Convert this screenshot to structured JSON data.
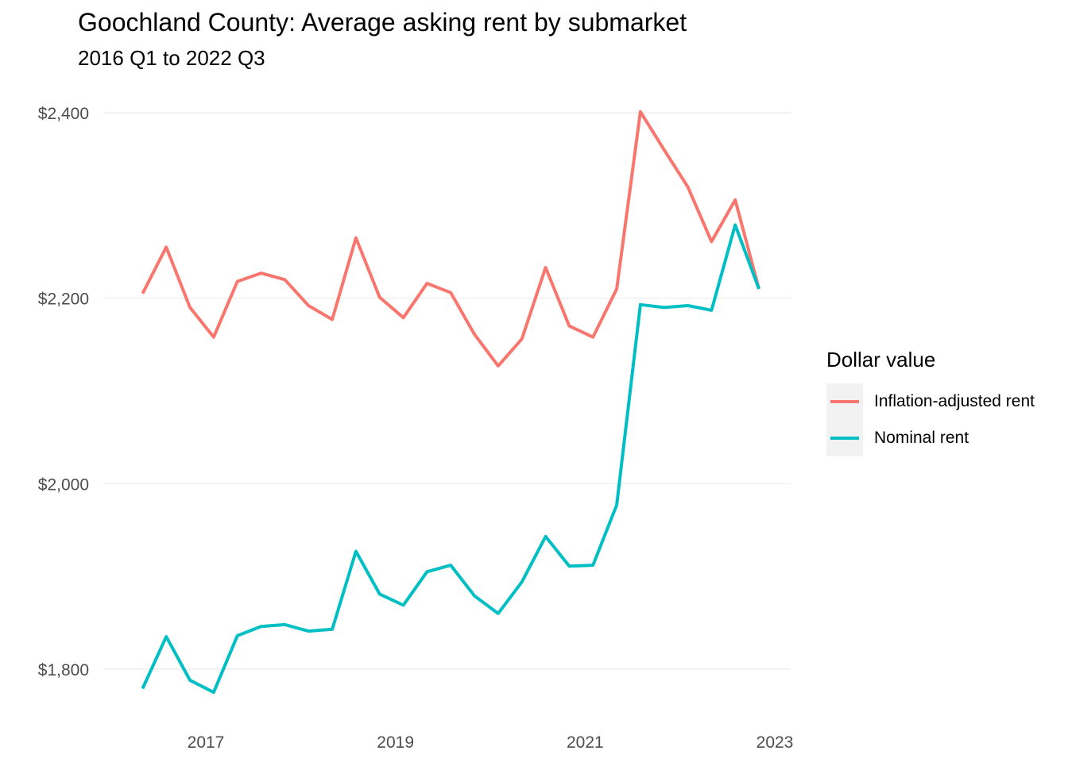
{
  "chart_data": {
    "type": "line",
    "title": "Goochland County: Average asking rent by submarket",
    "subtitle": "2016 Q1 to 2022 Q3",
    "xlabel": "",
    "ylabel": "",
    "x_ticks": [
      "2017",
      "2019",
      "2021",
      "2023"
    ],
    "y_ticks": [
      "$1,800",
      "$2,000",
      "$2,200",
      "$2,400"
    ],
    "ylim": [
      1760,
      2420
    ],
    "grid": true,
    "legend_title": "Dollar value",
    "legend_position": "right",
    "x": [
      "2016 Q1",
      "2016 Q2",
      "2016 Q3",
      "2016 Q4",
      "2017 Q1",
      "2017 Q2",
      "2017 Q3",
      "2017 Q4",
      "2018 Q1",
      "2018 Q2",
      "2018 Q3",
      "2018 Q4",
      "2019 Q1",
      "2019 Q2",
      "2019 Q3",
      "2019 Q4",
      "2020 Q1",
      "2020 Q2",
      "2020 Q3",
      "2020 Q4",
      "2021 Q1",
      "2021 Q2",
      "2021 Q3",
      "2021 Q4",
      "2022 Q1",
      "2022 Q2",
      "2022 Q3"
    ],
    "series": [
      {
        "name": "Inflation-adjusted rent",
        "color": "#F8766D",
        "values": [
          2205,
          2255,
          2190,
          2158,
          2218,
          2227,
          2220,
          2192,
          2177,
          2265,
          2201,
          2179,
          2216,
          2206,
          2161,
          2127,
          2156,
          2233,
          2170,
          2158,
          2210,
          2401,
          2360,
          2320,
          2261,
          2306,
          2210
        ]
      },
      {
        "name": "Nominal rent",
        "color": "#00BFC4",
        "values": [
          1779,
          1835,
          1788,
          1775,
          1836,
          1846,
          1848,
          1841,
          1843,
          1927,
          1881,
          1869,
          1905,
          1912,
          1879,
          1860,
          1894,
          1943,
          1911,
          1912,
          1977,
          2193,
          2190,
          2192,
          2187,
          2279,
          2210
        ]
      }
    ]
  }
}
